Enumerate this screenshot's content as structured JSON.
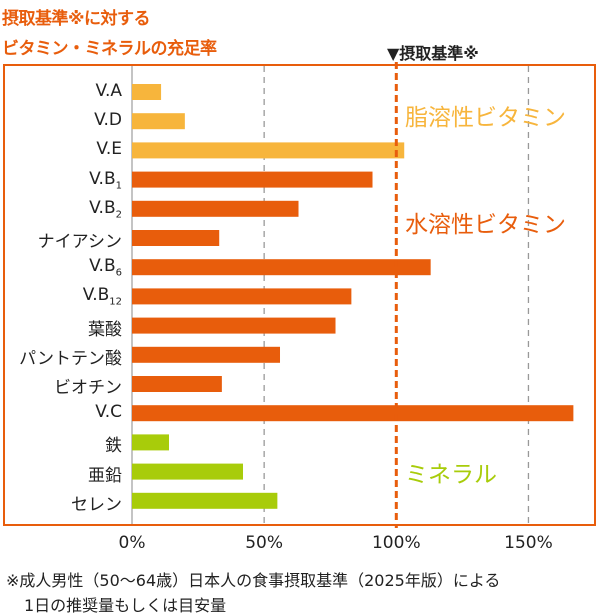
{
  "title_lines": [
    "摂取基準※に対する",
    "ビタミン・ミネラルの充足率"
  ],
  "colors": {
    "fat_soluble": "#f7b53c",
    "water_soluble": "#e85d0c",
    "mineral": "#a8cc0a",
    "frame": "#e85d0c",
    "grid": "#999999"
  },
  "chart_data": {
    "type": "bar",
    "orientation": "horizontal",
    "categories": [
      "V.A",
      "V.D",
      "V.E",
      "V.B1",
      "V.B2",
      "ナイアシン",
      "V.B6",
      "V.B12",
      "葉酸",
      "パントテン酸",
      "ビオチン",
      "V.C",
      "鉄",
      "亜鉛",
      "セレン"
    ],
    "values": [
      11,
      20,
      103,
      91,
      63,
      33,
      113,
      83,
      77,
      56,
      34,
      167,
      14,
      42,
      55
    ],
    "groups": [
      "fat_soluble",
      "fat_soluble",
      "fat_soluble",
      "water_soluble",
      "water_soluble",
      "water_soluble",
      "water_soluble",
      "water_soluble",
      "water_soluble",
      "water_soluble",
      "water_soluble",
      "water_soluble",
      "mineral",
      "mineral",
      "mineral"
    ],
    "group_labels": {
      "fat_soluble": "脂溶性ビタミン",
      "water_soluble": "水溶性ビタミン",
      "mineral": "ミネラル"
    },
    "xlim": [
      0,
      175
    ],
    "x_ticks": [
      0,
      50,
      100,
      150
    ],
    "x_tick_labels": [
      "0%",
      "50%",
      "100%",
      "150%"
    ],
    "reference_line": {
      "value": 100,
      "label": "▼摂取基準※"
    },
    "grid": "vertical dashed"
  },
  "footnote_lines": [
    "※成人男性（50〜64歳）日本人の食事摂取基準（2025年版）による",
    "1日の推奨量もしくは目安量"
  ]
}
